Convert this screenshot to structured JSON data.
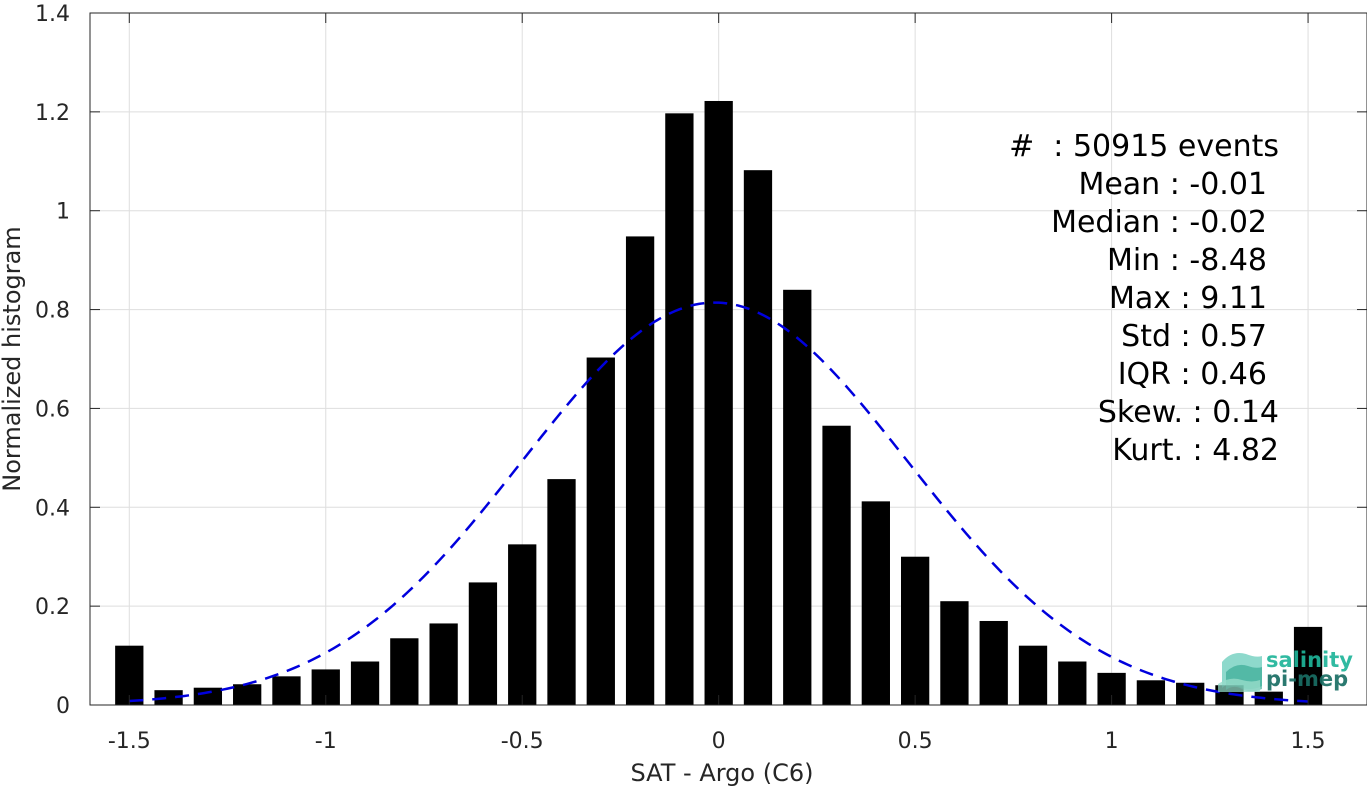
{
  "chart_data": {
    "type": "bar",
    "xlabel": "SAT - Argo (C6)",
    "ylabel": "Normalized histogram",
    "xlim": [
      -1.6,
      1.65
    ],
    "ylim": [
      0,
      1.4
    ],
    "grid": true,
    "x_ticks": [
      -1.5,
      -1,
      -0.5,
      0,
      0.5,
      1,
      1.5
    ],
    "x_tick_labels": [
      "-1.5",
      "-1",
      "-0.5",
      "0",
      "0.5",
      "1",
      "1.5"
    ],
    "y_ticks": [
      0,
      0.2,
      0.4,
      0.6,
      0.8,
      1,
      1.2,
      1.4
    ],
    "y_tick_labels": [
      "0",
      "0.2",
      "0.4",
      "0.6",
      "0.8",
      "1",
      "1.2",
      "1.4"
    ],
    "bar_color": "#000000",
    "bin_width": 0.1,
    "bins": [
      -1.5,
      -1.4,
      -1.3,
      -1.2,
      -1.1,
      -1.0,
      -0.9,
      -0.8,
      -0.7,
      -0.6,
      -0.5,
      -0.4,
      -0.3,
      -0.2,
      -0.1,
      0.0,
      0.1,
      0.2,
      0.3,
      0.4,
      0.5,
      0.6,
      0.7,
      0.8,
      0.9,
      1.0,
      1.1,
      1.2,
      1.3,
      1.4,
      1.5
    ],
    "values": [
      0.12,
      0.03,
      0.035,
      0.042,
      0.058,
      0.072,
      0.088,
      0.135,
      0.165,
      0.248,
      0.325,
      0.457,
      0.703,
      0.948,
      1.197,
      1.222,
      1.082,
      0.84,
      0.565,
      0.412,
      0.3,
      0.21,
      0.17,
      0.12,
      0.088,
      0.065,
      0.05,
      0.045,
      0.04,
      0.027,
      0.158
    ],
    "fit": {
      "type": "gaussian",
      "mean": -0.01,
      "std": 0.49,
      "xrange": [
        -1.5,
        1.5
      ],
      "color": "#0000dd",
      "style": "dashed"
    }
  },
  "stats": {
    "lines": [
      "#  : 50915 events",
      "Mean : -0.01",
      "Median : -0.02",
      "Min : -8.48",
      "Max : 9.11",
      "Std : 0.57",
      "IQR : 0.46",
      "Skew. : 0.14",
      "Kurt. : 4.82"
    ]
  },
  "logo": {
    "line1": "salinity",
    "line2": "pi-mep",
    "color1": "#1fb59a",
    "color2": "#1a6e64"
  }
}
